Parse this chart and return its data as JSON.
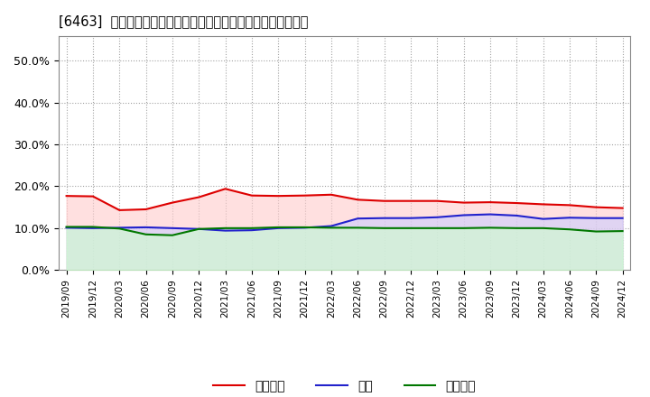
{
  "title": "[6463]  売上債権、在庫、買入債務の総資産に対する比率の推移",
  "dates": [
    "2019/09",
    "2019/12",
    "2020/03",
    "2020/06",
    "2020/09",
    "2020/12",
    "2021/03",
    "2021/06",
    "2021/09",
    "2021/12",
    "2022/03",
    "2022/06",
    "2022/09",
    "2022/12",
    "2023/03",
    "2023/06",
    "2023/09",
    "2023/12",
    "2024/03",
    "2024/06",
    "2024/09",
    "2024/12"
  ],
  "uriage_saiken": [
    0.177,
    0.176,
    0.143,
    0.145,
    0.161,
    0.174,
    0.194,
    0.178,
    0.177,
    0.178,
    0.18,
    0.168,
    0.165,
    0.165,
    0.165,
    0.161,
    0.162,
    0.16,
    0.157,
    0.155,
    0.15,
    0.148
  ],
  "zaiko": [
    0.101,
    0.1,
    0.101,
    0.102,
    0.1,
    0.098,
    0.094,
    0.095,
    0.1,
    0.101,
    0.105,
    0.123,
    0.124,
    0.124,
    0.126,
    0.131,
    0.133,
    0.13,
    0.122,
    0.125,
    0.124,
    0.124
  ],
  "kainyu_saimu": [
    0.103,
    0.103,
    0.099,
    0.085,
    0.083,
    0.098,
    0.1,
    0.1,
    0.102,
    0.102,
    0.101,
    0.101,
    0.1,
    0.1,
    0.1,
    0.1,
    0.101,
    0.1,
    0.1,
    0.097,
    0.092,
    0.093
  ],
  "line_colors": {
    "uriage_saiken": "#dd0000",
    "zaiko": "#2222cc",
    "kainyu_saimu": "#007700"
  },
  "fill_colors": {
    "uriage_saiken": "#ffcccc",
    "zaiko": "#ccccff",
    "kainyu_saimu": "#ccffcc"
  },
  "legend_labels": {
    "uriage_saiken": "売上債権",
    "zaiko": "在庫",
    "kainyu_saimu": "買入債務"
  },
  "ylim": [
    0.0,
    0.56
  ],
  "yticks": [
    0.0,
    0.1,
    0.2,
    0.3,
    0.4,
    0.5
  ],
  "ytick_labels": [
    "0.0%",
    "10.0%",
    "20.0%",
    "30.0%",
    "40.0%",
    "50.0%"
  ],
  "background_color": "#ffffff",
  "plot_bg_color": "#ffffff",
  "grid_color": "#999999",
  "linewidth": 1.5
}
